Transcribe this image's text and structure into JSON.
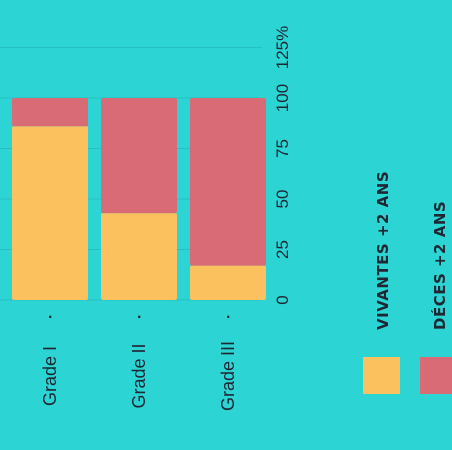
{
  "chart_data": {
    "type": "bar",
    "stacked": true,
    "orientation": "vertical, rotated 90 degrees clockwise",
    "categories": [
      "Grade I",
      "Grade II",
      "Grade III"
    ],
    "category_markers": [
      ".",
      ".",
      "."
    ],
    "series": [
      {
        "name": "VIVANTES +2 ANS",
        "values": [
          86,
          43,
          17
        ]
      },
      {
        "name": "DÉCES +2 ANS",
        "values": [
          14,
          57,
          83
        ]
      }
    ],
    "y_ticks": [
      "0",
      "25",
      "50",
      "75",
      "100",
      "125%"
    ],
    "ylim": [
      0,
      125
    ],
    "grid": true,
    "legend_position": "right"
  },
  "colors": {
    "background": "#2dd4d4",
    "VIVANTES +2 ANS": "#fbc15e",
    "DÉCES +2 ANS": "#d96b76",
    "text": "#1f2733"
  }
}
